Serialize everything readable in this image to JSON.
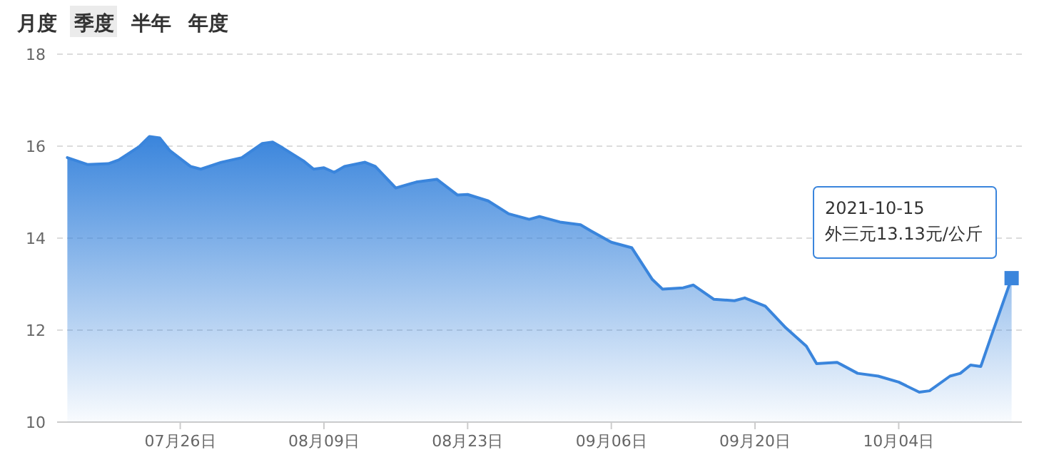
{
  "chart_data": {
    "type": "area",
    "x": [
      "2021-07-15",
      "2021-07-17",
      "2021-07-19",
      "2021-07-20",
      "2021-07-22",
      "2021-07-23",
      "2021-07-24",
      "2021-07-25",
      "2021-07-27",
      "2021-07-28",
      "2021-07-30",
      "2021-08-01",
      "2021-08-03",
      "2021-08-04",
      "2021-08-05",
      "2021-08-07",
      "2021-08-08",
      "2021-08-09",
      "2021-08-10",
      "2021-08-11",
      "2021-08-13",
      "2021-08-14",
      "2021-08-16",
      "2021-08-18",
      "2021-08-20",
      "2021-08-22",
      "2021-08-23",
      "2021-08-25",
      "2021-08-27",
      "2021-08-29",
      "2021-08-30",
      "2021-09-01",
      "2021-09-03",
      "2021-09-04",
      "2021-09-06",
      "2021-09-08",
      "2021-09-10",
      "2021-09-11",
      "2021-09-13",
      "2021-09-14",
      "2021-09-16",
      "2021-09-18",
      "2021-09-19",
      "2021-09-21",
      "2021-09-23",
      "2021-09-25",
      "2021-09-26",
      "2021-09-28",
      "2021-09-30",
      "2021-10-02",
      "2021-10-04",
      "2021-10-06",
      "2021-10-07",
      "2021-10-09",
      "2021-10-10",
      "2021-10-11",
      "2021-10-12",
      "2021-10-13",
      "2021-10-15"
    ],
    "series": [
      {
        "color": "#3a85dc",
        "values": [
          15.75,
          15.6,
          15.62,
          15.7,
          15.99,
          16.21,
          16.18,
          15.9,
          15.56,
          15.5,
          15.65,
          15.75,
          16.06,
          16.09,
          15.96,
          15.68,
          15.5,
          15.53,
          15.43,
          15.56,
          15.65,
          15.56,
          15.09,
          15.22,
          15.28,
          14.94,
          14.95,
          14.81,
          14.53,
          14.41,
          14.47,
          14.35,
          14.29,
          14.16,
          13.91,
          13.79,
          13.1,
          12.89,
          12.92,
          12.98,
          12.67,
          12.64,
          12.7,
          12.52,
          12.05,
          11.65,
          11.27,
          11.3,
          11.06,
          11.0,
          10.87,
          10.65,
          10.68,
          11.0,
          11.06,
          11.24,
          11.21,
          11.86,
          13.13
        ]
      }
    ],
    "xlim": [
      "2021-07-14",
      "2021-10-16"
    ],
    "xticks": [
      {
        "value": "2021-07-26",
        "label": "07月26日"
      },
      {
        "value": "2021-08-09",
        "label": "08月09日"
      },
      {
        "value": "2021-08-23",
        "label": "08月23日"
      },
      {
        "value": "2021-09-06",
        "label": "09月06日"
      },
      {
        "value": "2021-09-20",
        "label": "09月20日"
      },
      {
        "value": "2021-10-04",
        "label": "10月04日"
      }
    ],
    "ylim": [
      10,
      18
    ],
    "yticks": [
      10,
      12,
      14,
      16,
      18
    ],
    "grid": "y",
    "line_style": "solid",
    "annotations": [
      "月度",
      "季度",
      "半年",
      "年度",
      {
        "text": "2021-10-15\n外三元13.13元/公斤",
        "x": "2021-10-15",
        "y": 13.13
      }
    ]
  }
}
